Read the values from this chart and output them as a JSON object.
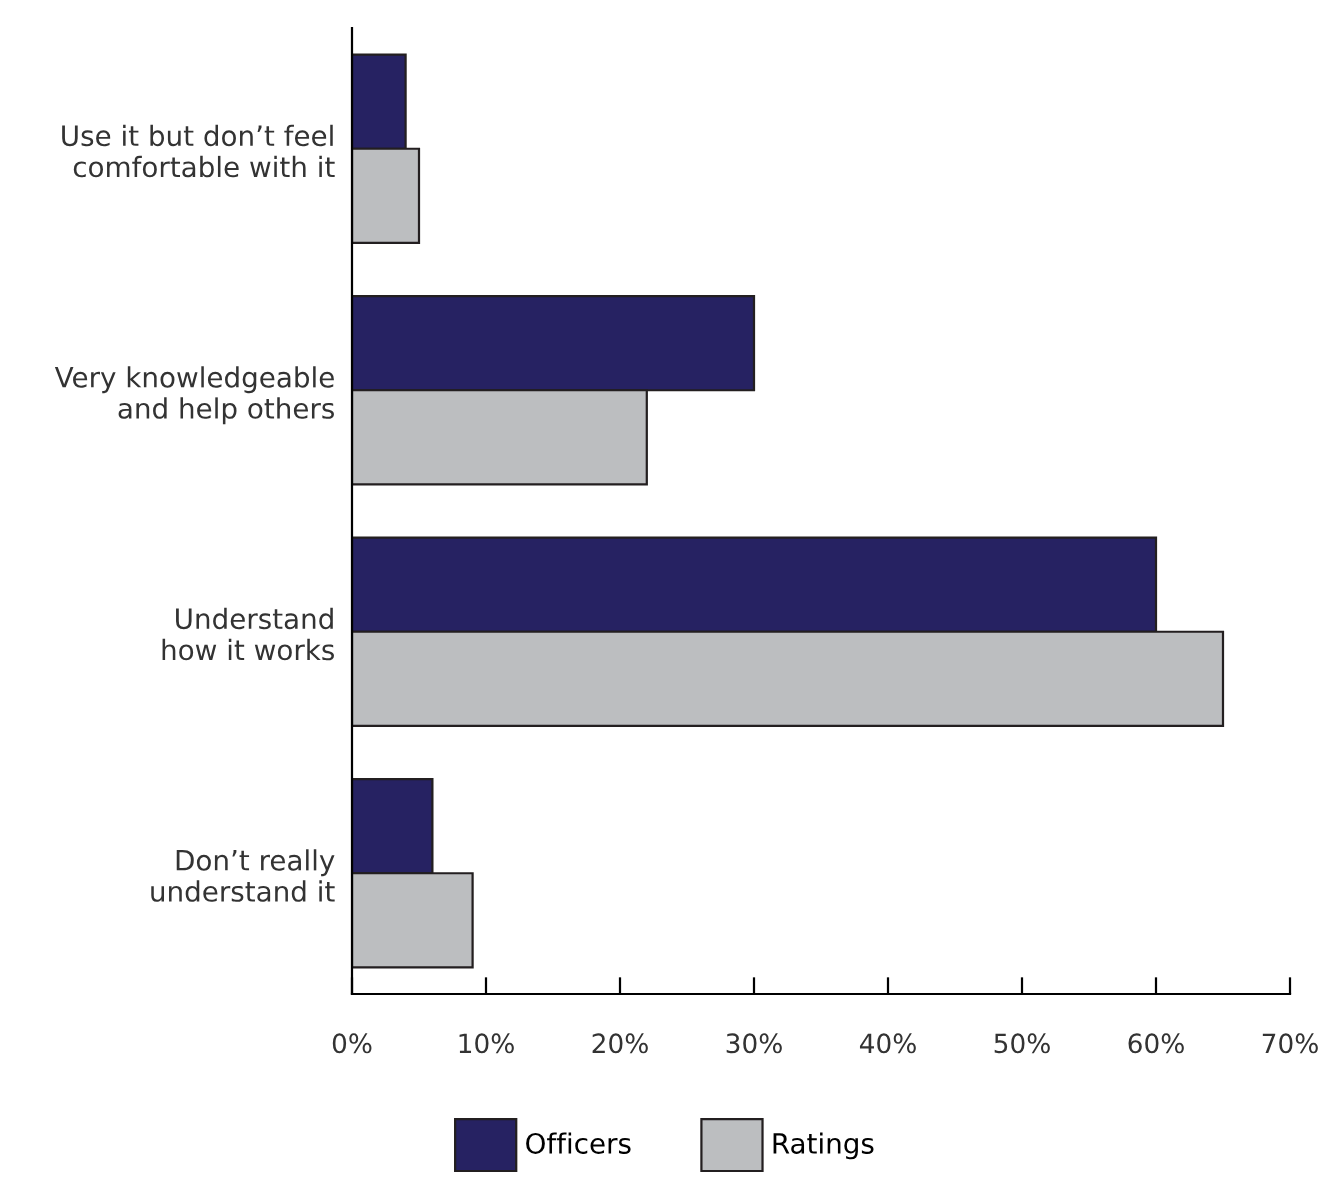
{
  "chart_data": {
    "type": "bar",
    "orientation": "horizontal",
    "categories": [
      "Use it but don’t feel\ncomfortable with it",
      "Very knowledgeable\nand help others",
      "Understand\nhow it works",
      "Don’t really\nunderstand it"
    ],
    "series": [
      {
        "name": "Officers",
        "color": "#262262",
        "values": [
          4,
          30,
          60,
          6
        ]
      },
      {
        "name": "Ratings",
        "color": "#bcbec0",
        "values": [
          5,
          22,
          65,
          9
        ]
      }
    ],
    "xlim": [
      0,
      70
    ],
    "xticks": [
      {
        "value": 0,
        "label": "0%"
      },
      {
        "value": 10,
        "label": "10%"
      },
      {
        "value": 20,
        "label": "20%"
      },
      {
        "value": 30,
        "label": "30%"
      },
      {
        "value": 40,
        "label": "40%"
      },
      {
        "value": 50,
        "label": "50%"
      },
      {
        "value": 60,
        "label": "60%"
      },
      {
        "value": 70,
        "label": "70%"
      }
    ],
    "grid": false,
    "legend": "bottom"
  }
}
